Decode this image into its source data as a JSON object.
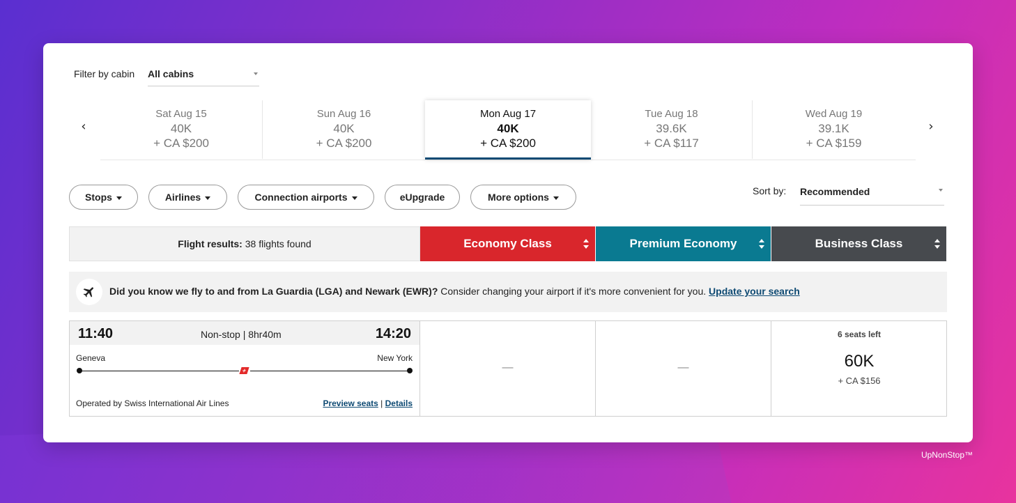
{
  "colors": {
    "economy": "#d9262c",
    "premium": "#0a7a91",
    "business": "#474a4e",
    "link": "#0e4a73",
    "green_price": "#218a21"
  },
  "filter": {
    "label": "Filter by cabin",
    "value": "All cabins"
  },
  "dates": [
    {
      "day": "Sat Aug 15",
      "points": "40K",
      "tax": "+ CA $200"
    },
    {
      "day": "Sun Aug 16",
      "points": "40K",
      "tax": "+ CA $200"
    },
    {
      "day": "Mon Aug 17",
      "points": "40K",
      "tax": "+ CA $200"
    },
    {
      "day": "Tue Aug 18",
      "points": "39.6K",
      "tax": "+ CA $117"
    },
    {
      "day": "Wed Aug 19",
      "points": "39.1K",
      "tax": "+ CA $159"
    }
  ],
  "filters": {
    "stops": "Stops",
    "airlines": "Airlines",
    "connection": "Connection airports",
    "eupgrade": "eUpgrade",
    "more": "More options"
  },
  "sort": {
    "label": "Sort by:",
    "value": "Recommended"
  },
  "results": {
    "label": "Flight results:",
    "count": "38 flights found"
  },
  "classes": {
    "economy": "Economy Class",
    "premium": "Premium Economy",
    "business": "Business Class"
  },
  "banner": {
    "bold": "Did you know we fly to and from La Guardia (LGA) and Newark (EWR)?",
    "text": " Consider changing your airport if it's more convenient for you. ",
    "link": "Update your search"
  },
  "flight": {
    "depart_time": "11:40",
    "arrive_time": "14:20",
    "stops": "Non-stop | 8hr40m",
    "origin": "Geneva",
    "destination": "New York",
    "operated_by": "Operated by Swiss International Air Lines",
    "preview_seats": "Preview seats",
    "separator": "|",
    "details": "Details",
    "economy_fare": "—",
    "premium_fare": "—",
    "business_seats": "6 seats left",
    "business_points": "60K",
    "business_tax": "+ CA $156"
  },
  "watermark": "UpNonStop™"
}
